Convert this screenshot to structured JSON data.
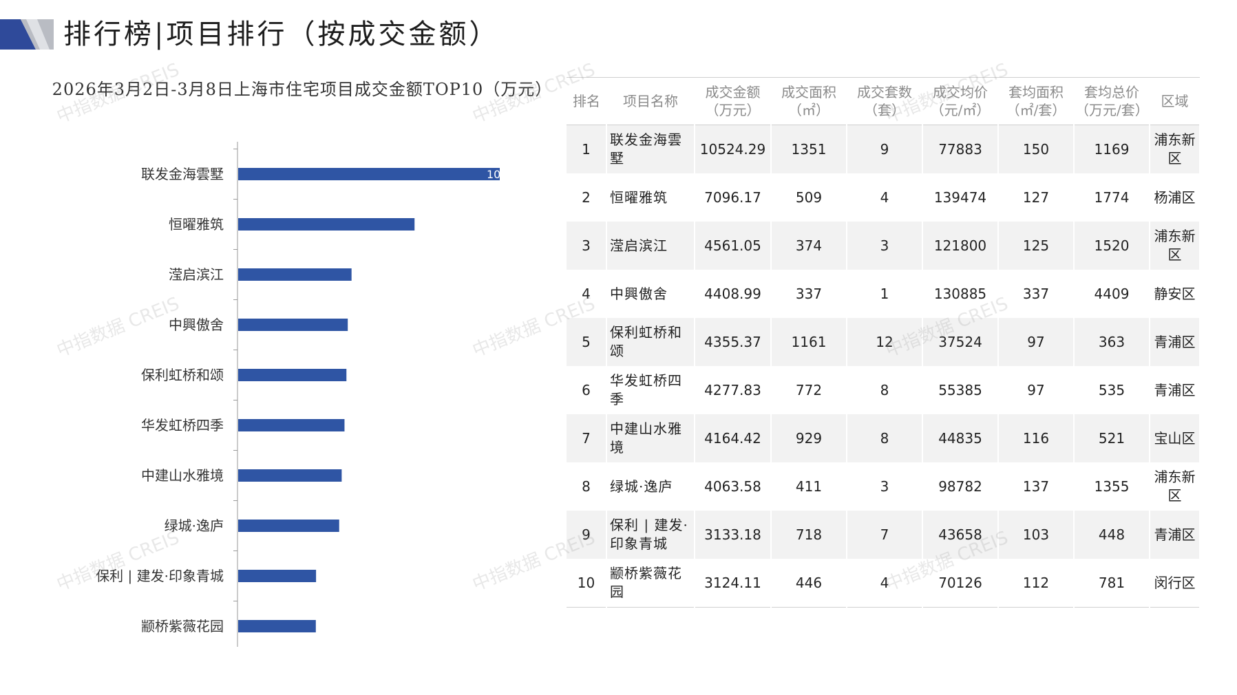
{
  "header": {
    "title": "排行榜|项目排行（按成交金额）"
  },
  "colors": {
    "bar": "#2f55a4",
    "header_dark": "#2f4a9a",
    "header_light": "#b9bcc3",
    "table_stripe": "#f2f2f2"
  },
  "watermark": "中指数据 CREIS",
  "chart_data": {
    "type": "bar",
    "orientation": "horizontal",
    "title": "2026年3月2日-3月8日上海市住宅项目成交金额TOP10（万元）",
    "categories": [
      "联发金海雲墅",
      "恒曜雅筑",
      "滢启滨江",
      "中興傲舍",
      "保利虹桥和颂",
      "华发虹桥四季",
      "中建山水雅境",
      "绿城·逸庐",
      "保利 | 建发·印象青城",
      "颛桥紫薇花园"
    ],
    "values": [
      10524.29,
      7096.17,
      4561.05,
      4408.99,
      4355.37,
      4277.83,
      4164.42,
      4063.58,
      3133.18,
      3124.11
    ],
    "visible_data_labels": [
      "10",
      "",
      "",
      "",
      "",
      "",
      "",
      "",
      "",
      ""
    ],
    "xlim": [
      0,
      10524.29
    ],
    "grid": false,
    "legend": false
  },
  "table": {
    "headers": [
      [
        "排名"
      ],
      [
        "项目名称"
      ],
      [
        "成交金额",
        "（万元）"
      ],
      [
        "成交面积",
        "（㎡）"
      ],
      [
        "成交套数",
        "（套）"
      ],
      [
        "成交均价",
        "（元/㎡）"
      ],
      [
        "套均面积",
        "（㎡/套）"
      ],
      [
        "套均总价",
        "（万元/套）"
      ],
      [
        "区域"
      ]
    ],
    "rows": [
      [
        "1",
        "联发金海雲墅",
        "10524.29",
        "1351",
        "9",
        "77883",
        "150",
        "1169",
        "浦东新区"
      ],
      [
        "2",
        "恒曜雅筑",
        "7096.17",
        "509",
        "4",
        "139474",
        "127",
        "1774",
        "杨浦区"
      ],
      [
        "3",
        "滢启滨江",
        "4561.05",
        "374",
        "3",
        "121800",
        "125",
        "1520",
        "浦东新区"
      ],
      [
        "4",
        "中興傲舍",
        "4408.99",
        "337",
        "1",
        "130885",
        "337",
        "4409",
        "静安区"
      ],
      [
        "5",
        "保利虹桥和颂",
        "4355.37",
        "1161",
        "12",
        "37524",
        "97",
        "363",
        "青浦区"
      ],
      [
        "6",
        "华发虹桥四季",
        "4277.83",
        "772",
        "8",
        "55385",
        "97",
        "535",
        "青浦区"
      ],
      [
        "7",
        "中建山水雅境",
        "4164.42",
        "929",
        "8",
        "44835",
        "116",
        "521",
        "宝山区"
      ],
      [
        "8",
        "绿城·逸庐",
        "4063.58",
        "411",
        "3",
        "98782",
        "137",
        "1355",
        "浦东新区"
      ],
      [
        "9",
        "保利 | 建发·印象青城",
        "3133.18",
        "718",
        "7",
        "43658",
        "103",
        "448",
        "青浦区"
      ],
      [
        "10",
        "颛桥紫薇花园",
        "3124.11",
        "446",
        "4",
        "70126",
        "112",
        "781",
        "闵行区"
      ]
    ]
  }
}
